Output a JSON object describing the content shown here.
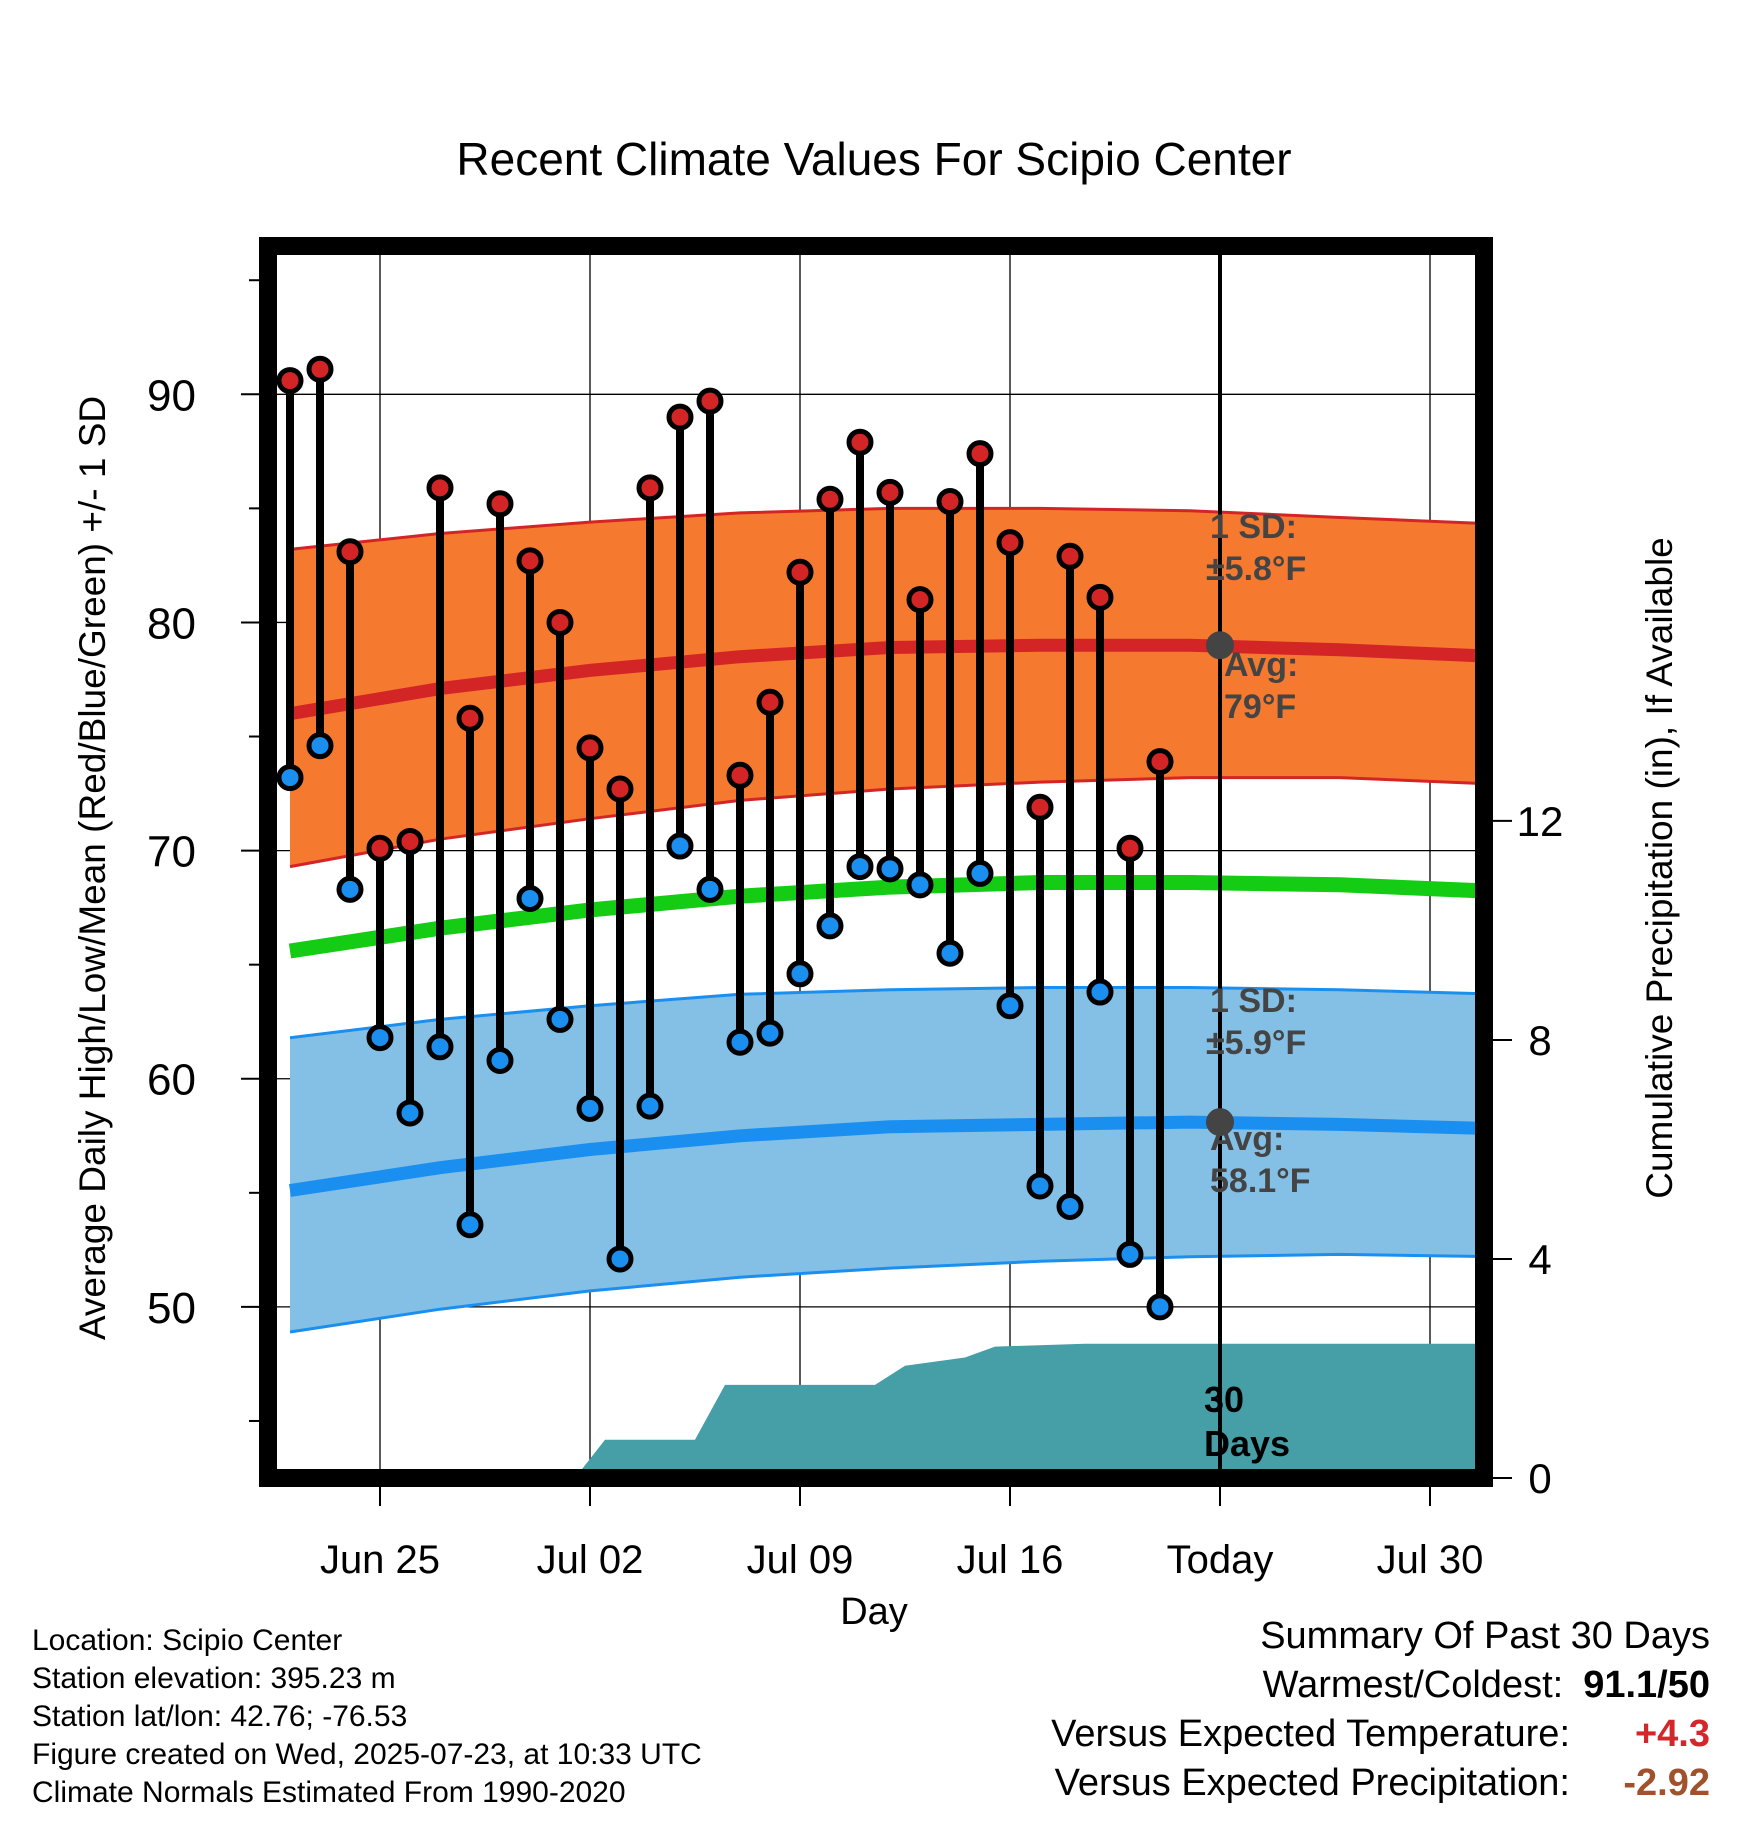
{
  "chart_data": {
    "type": "line",
    "title": "Recent Climate Values For Scipio Center",
    "xlabel": "Day",
    "ylabel": "Average Daily High/Low/Mean (Red/Blue/Green) +/- 1 SD",
    "ylabel_right": "Cumulative Precipitation (in), If Available",
    "x_tick_labels": [
      "Jun 25",
      "Jul 02",
      "Jul 09",
      "Jul 16",
      "Today",
      "Jul 30"
    ],
    "y_tick_labels": [
      "50",
      "60",
      "70",
      "80",
      "90"
    ],
    "y_right_tick_labels": [
      "0",
      "4",
      "8",
      "12"
    ],
    "ylim": [
      42.5,
      96.5
    ],
    "y_right_lim": [
      0,
      22.5
    ],
    "colors": {
      "high_band": "#f57a30",
      "high_line": "#d42526",
      "low_band": "#84c0e6",
      "low_line": "#1a8ff0",
      "mean_line": "#14cc14",
      "precip": "#469ea6",
      "avg_marker": "#444444",
      "annotation": "#444444"
    },
    "days": [
      {
        "high": 90.6,
        "low": 73.2
      },
      {
        "high": 91.1,
        "low": 74.6
      },
      {
        "high": 83.1,
        "low": 68.3
      },
      {
        "high": 70.1,
        "low": 61.8
      },
      {
        "high": 70.4,
        "low": 58.5
      },
      {
        "high": 85.9,
        "low": 61.4
      },
      {
        "high": 75.8,
        "low": 53.6
      },
      {
        "high": 85.2,
        "low": 60.8
      },
      {
        "high": 82.7,
        "low": 67.9
      },
      {
        "high": 80.0,
        "low": 62.6
      },
      {
        "high": 74.5,
        "low": 58.7
      },
      {
        "high": 72.7,
        "low": 52.1
      },
      {
        "high": 85.9,
        "low": 58.8
      },
      {
        "high": 89.0,
        "low": 70.2
      },
      {
        "high": 89.7,
        "low": 68.3
      },
      {
        "high": 73.3,
        "low": 61.6
      },
      {
        "high": 76.5,
        "low": 62.0
      },
      {
        "high": 82.2,
        "low": 64.6
      },
      {
        "high": 85.4,
        "low": 66.7
      },
      {
        "high": 87.9,
        "low": 69.3
      },
      {
        "high": 85.7,
        "low": 69.2
      },
      {
        "high": 81.0,
        "low": 68.5
      },
      {
        "high": 85.3,
        "low": 65.5
      },
      {
        "high": 87.4,
        "low": 69.0
      },
      {
        "high": 83.5,
        "low": 63.2
      },
      {
        "high": 71.9,
        "low": 55.3
      },
      {
        "high": 82.9,
        "low": 54.4
      },
      {
        "high": 81.1,
        "low": 63.8
      },
      {
        "high": 70.1,
        "low": 52.3
      },
      {
        "high": 73.9,
        "low": 50.0
      }
    ],
    "normals": {
      "x": [
        0,
        5,
        10,
        15,
        20,
        25,
        30,
        35,
        40.4
      ],
      "high_mean": [
        76.0,
        77.1,
        77.9,
        78.5,
        78.9,
        79.0,
        79.0,
        78.8,
        78.5
      ],
      "high_upper": [
        83.2,
        83.9,
        84.4,
        84.8,
        85.0,
        85.0,
        84.9,
        84.6,
        84.3
      ],
      "high_lower": [
        69.3,
        70.5,
        71.4,
        72.2,
        72.7,
        73.0,
        73.2,
        73.2,
        72.9
      ],
      "low_mean": [
        55.1,
        56.1,
        56.9,
        57.5,
        57.9,
        58.0,
        58.1,
        58.0,
        57.8
      ],
      "low_upper": [
        61.8,
        62.6,
        63.2,
        63.7,
        63.9,
        64.0,
        64.0,
        63.9,
        63.7
      ],
      "low_lower": [
        48.9,
        49.9,
        50.7,
        51.3,
        51.7,
        52.0,
        52.2,
        52.3,
        52.2
      ],
      "daily_mean": [
        65.6,
        66.6,
        67.4,
        68.0,
        68.4,
        68.6,
        68.6,
        68.5,
        68.2
      ]
    },
    "precip_cumulative": {
      "x": [
        9.5,
        10.5,
        13.5,
        14.5,
        19.5,
        20.5,
        22.5,
        23.5,
        26.5,
        40.4
      ],
      "values": [
        0,
        0.7,
        0.7,
        1.7,
        1.7,
        2.05,
        2.2,
        2.4,
        2.45,
        2.45
      ]
    },
    "annotations": {
      "high_sd_label": "1 SD:",
      "high_sd_value": "±5.8°F",
      "high_avg_label": "Avg:",
      "high_avg_value": "79°F",
      "low_sd_label": "1 SD:",
      "low_sd_value": "±5.9°F",
      "low_avg_label": "Avg:",
      "low_avg_value": "58.1°F",
      "today_avg_high": 79.0,
      "today_avg_low": 58.1,
      "days_label_1": "30",
      "days_label_2": "Days"
    }
  },
  "info": {
    "location": "Location: Scipio Center",
    "elevation": "Station elevation: 395.23 m",
    "latlon": "Station lat/lon: 42.76; -76.53",
    "created": "Figure created on Wed, 2025-07-23, at 10:33 UTC",
    "normals": "Climate Normals Estimated From 1990-2020"
  },
  "summary": {
    "title": "Summary Of Past 30 Days",
    "warmest_label": "Warmest/Coldest:",
    "warmest_value": "91.1/50",
    "temp_label": "Versus Expected Temperature:",
    "temp_value": "+4.3",
    "precip_label": "Versus Expected Precipitation:",
    "precip_value": "-2.92"
  }
}
